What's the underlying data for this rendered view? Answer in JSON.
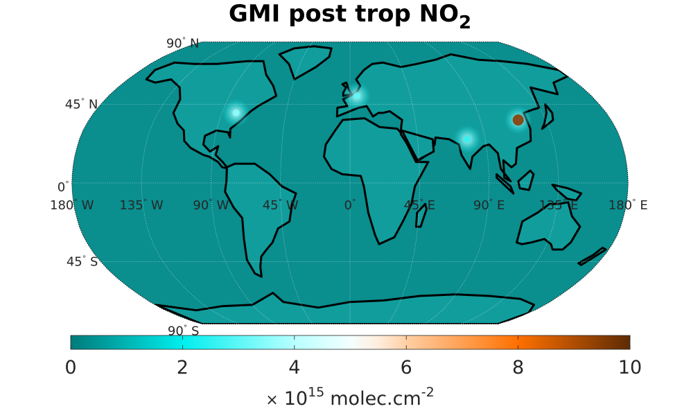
{
  "title": {
    "main": "GMI post trop NO",
    "subscript": "2"
  },
  "map": {
    "projection": "robinson",
    "lat_labels": [
      {
        "text": "90",
        "hemi": "N",
        "lat": 90
      },
      {
        "text": "45",
        "hemi": "N",
        "lat": 45
      },
      {
        "text": "0",
        "hemi": "",
        "lat": 0
      },
      {
        "text": "45",
        "hemi": "S",
        "lat": -45
      },
      {
        "text": "90",
        "hemi": "S",
        "lat": -90
      }
    ],
    "lon_labels": [
      {
        "text": "180",
        "hemi": "W",
        "lon": -180
      },
      {
        "text": "135",
        "hemi": "W",
        "lon": -135
      },
      {
        "text": "90",
        "hemi": "W",
        "lon": -90
      },
      {
        "text": "45",
        "hemi": "W",
        "lon": -45
      },
      {
        "text": "0",
        "hemi": "",
        "lon": 0
      },
      {
        "text": "45",
        "hemi": "E",
        "lon": 45
      },
      {
        "text": "90",
        "hemi": "E",
        "lon": 90
      },
      {
        "text": "135",
        "hemi": "E",
        "lon": 135
      },
      {
        "text": "180",
        "hemi": "E",
        "lon": 180
      }
    ],
    "ocean_color": "#0a8e8e",
    "coast_color": "#000000",
    "grid_style": "dotted-white"
  },
  "colorbar": {
    "min": 0,
    "max": 10,
    "ticks": [
      "0",
      "2",
      "4",
      "6",
      "8",
      "10"
    ],
    "tick_values": [
      0,
      2,
      4,
      6,
      8,
      10
    ],
    "stops": [
      {
        "value": 0,
        "color": "#007a7a"
      },
      {
        "value": 2,
        "color": "#00eeee"
      },
      {
        "value": 4,
        "color": "#b8ffff"
      },
      {
        "value": 5.2,
        "color": "#ffffff"
      },
      {
        "value": 6,
        "color": "#ffcfa4"
      },
      {
        "value": 8,
        "color": "#ff7000"
      },
      {
        "value": 10,
        "color": "#5e2a04"
      }
    ],
    "units_prefix": "×",
    "units_base": "10",
    "units_exp": "15",
    "units_text": "molec.cm",
    "units_exp2": "-2"
  },
  "hotspots": [
    {
      "name": "eastern-usa",
      "lon": -80,
      "lat": 40,
      "value": 3.5
    },
    {
      "name": "europe",
      "lon": 5,
      "lat": 50,
      "value": 3.0
    },
    {
      "name": "india",
      "lon": 78,
      "lat": 25,
      "value": 2.5
    },
    {
      "name": "north-china-plain",
      "lon": 116,
      "lat": 36,
      "value": 9.5
    }
  ]
}
